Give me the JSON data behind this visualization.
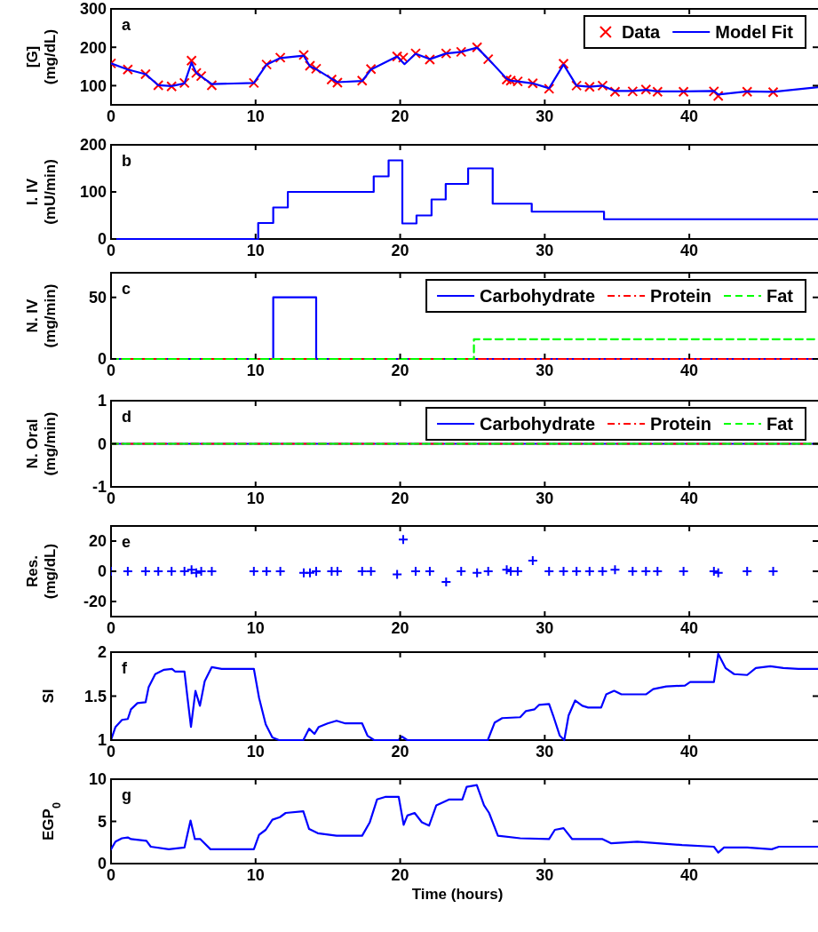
{
  "chart_data": [
    {
      "type": "line",
      "ylabel": "[G]\n(mg/dL)",
      "annotations": [
        "a"
      ],
      "xlim": [
        0,
        48.9
      ],
      "xticks": [
        0,
        10,
        20,
        30,
        40
      ],
      "ylim": [
        50,
        300
      ],
      "yticks": [
        100,
        200,
        300
      ],
      "legend": "top right",
      "grid": false,
      "series": [
        {
          "name": "Data",
          "type": "scatter",
          "marker": "cross",
          "color": "#ff0000",
          "x": [
            0,
            1.16,
            2.39,
            3.27,
            4.19,
            5.08,
            5.57,
            5.9,
            6.24,
            6.97,
            9.88,
            10.76,
            11.71,
            13.33,
            13.76,
            14.19,
            15.26,
            15.66,
            17.37,
            17.98,
            19.79,
            20.21,
            21.07,
            22.05,
            23.18,
            24.22,
            25.32,
            26.09,
            27.37,
            27.65,
            28.13,
            29.17,
            30.3,
            31.3,
            32.2,
            33.1,
            34.0,
            34.86,
            36.08,
            37.0,
            37.8,
            39.6,
            41.7,
            42.0,
            44.0,
            45.8
          ],
          "values": [
            158,
            142,
            130,
            101,
            98,
            107,
            165,
            133,
            125,
            101,
            107,
            155,
            173,
            180,
            152,
            144,
            116,
            108,
            113,
            143,
            176,
            173,
            184,
            168,
            184,
            188,
            200,
            169,
            116,
            113,
            111,
            106,
            92,
            157,
            100,
            97,
            100,
            84,
            85,
            90,
            84,
            84,
            85,
            73,
            84,
            83
          ]
        },
        {
          "name": "Model Fit",
          "line_style": "solid",
          "color": "#0000ff",
          "x": [
            0,
            1.16,
            2.39,
            3.27,
            4.19,
            5.08,
            5.57,
            5.9,
            6.24,
            6.97,
            9.88,
            10.76,
            11.71,
            13.33,
            13.76,
            14.19,
            15.26,
            15.66,
            17.37,
            17.98,
            19.79,
            20.3,
            21.07,
            22.05,
            23.18,
            24.22,
            25.32,
            26.09,
            27.37,
            27.65,
            28.13,
            29.17,
            30.3,
            31.3,
            32.2,
            33.1,
            34.0,
            34.86,
            36.08,
            37.0,
            37.8,
            39.6,
            41.7,
            42.0,
            44.0,
            45.8,
            48.9
          ],
          "values": [
            158,
            142,
            130,
            101,
            99,
            106,
            160,
            133,
            124,
            104,
            107,
            155,
            172,
            178,
            150,
            143,
            118,
            109,
            112,
            142,
            176,
            156,
            183,
            169,
            184,
            188,
            199,
            170,
            118,
            113,
            111,
            106,
            93,
            155,
            100,
            97,
            100,
            86,
            86,
            89,
            85,
            85,
            86,
            77,
            85,
            84,
            96
          ]
        }
      ]
    },
    {
      "type": "step",
      "ylabel": "I. IV\n(mU/min)",
      "annotations": [
        "b"
      ],
      "xlim": [
        0,
        48.9
      ],
      "xticks": [
        0,
        10,
        20,
        30,
        40
      ],
      "ylim": [
        0,
        200
      ],
      "yticks": [
        0,
        100,
        200
      ],
      "grid": false,
      "series": [
        {
          "color": "#0000ff",
          "x": [
            0,
            10.18,
            11.22,
            12.23,
            18.17,
            19.2,
            20.15,
            21.13,
            22.17,
            23.15,
            24.7,
            26.4,
            29.1,
            34.1,
            48.9
          ],
          "values": [
            0,
            34,
            67,
            100,
            133,
            167,
            33,
            50,
            84,
            117,
            150,
            75,
            58,
            42,
            42
          ]
        }
      ]
    },
    {
      "type": "step",
      "ylabel": "N. IV\n(mg/min)",
      "annotations": [
        "c"
      ],
      "xlim": [
        0,
        48.9
      ],
      "xticks": [
        0,
        10,
        20,
        30,
        40
      ],
      "ylim": [
        0,
        70
      ],
      "yticks": [
        0,
        50
      ],
      "legend": "top right",
      "grid": false,
      "series": [
        {
          "name": "Carbohydrate",
          "color": "#0000ff",
          "line_style": "solid",
          "x": [
            0,
            11.22,
            14.19,
            48.9
          ],
          "values": [
            0,
            50,
            0,
            0
          ]
        },
        {
          "name": "Protein",
          "color": "#ff0000",
          "line_style": "dashdot",
          "x": [
            0,
            48.9
          ],
          "values": [
            0,
            0
          ]
        },
        {
          "name": "Fat",
          "color": "#00ff00",
          "line_style": "dashed",
          "x": [
            0,
            25.1,
            48.9
          ],
          "values": [
            0,
            16,
            16
          ]
        }
      ]
    },
    {
      "type": "line",
      "ylabel": "N. Oral\n(mg/min)",
      "annotations": [
        "d"
      ],
      "xlim": [
        0,
        48.9
      ],
      "xticks": [
        0,
        10,
        20,
        30,
        40
      ],
      "ylim": [
        -1,
        1
      ],
      "yticks": [
        -1,
        0,
        1
      ],
      "legend": "top right",
      "grid": false,
      "series": [
        {
          "name": "Carbohydrate",
          "color": "#0000ff",
          "line_style": "solid",
          "x": [
            0,
            48.9
          ],
          "values": [
            0,
            0
          ]
        },
        {
          "name": "Protein",
          "color": "#ff0000",
          "line_style": "dashdot",
          "x": [
            0,
            48.9
          ],
          "values": [
            0,
            0
          ]
        },
        {
          "name": "Fat",
          "color": "#00ff00",
          "line_style": "dashed",
          "x": [
            0,
            48.9
          ],
          "values": [
            0,
            0
          ]
        }
      ]
    },
    {
      "type": "scatter",
      "ylabel": "Res.\n(mg/dL)",
      "annotations": [
        "e"
      ],
      "xlim": [
        0,
        48.9
      ],
      "xticks": [
        0,
        10,
        20,
        30,
        40
      ],
      "ylim": [
        -30,
        30
      ],
      "yticks": [
        -20,
        0,
        20
      ],
      "marker": "plus",
      "grid": false,
      "series": [
        {
          "color": "#0000ff",
          "x": [
            0,
            1.16,
            2.39,
            3.27,
            4.19,
            5.08,
            5.57,
            5.9,
            6.24,
            6.97,
            9.88,
            10.76,
            11.71,
            13.33,
            13.76,
            14.19,
            15.26,
            15.66,
            17.37,
            17.98,
            19.79,
            20.21,
            21.07,
            22.05,
            23.18,
            24.22,
            25.32,
            26.09,
            27.37,
            27.65,
            28.13,
            29.17,
            30.3,
            31.3,
            32.2,
            33.1,
            34.0,
            34.86,
            36.08,
            37.0,
            37.8,
            39.6,
            41.7,
            42.0,
            44.0,
            45.8
          ],
          "values": [
            0,
            0,
            0,
            0,
            0,
            0,
            1,
            -1,
            0,
            0,
            0,
            0,
            0,
            -1,
            -1,
            0,
            0,
            0,
            0,
            0,
            -2,
            21,
            0,
            0,
            -7,
            0,
            -1,
            0,
            1,
            0,
            0,
            7,
            0,
            0,
            0,
            0,
            0,
            1,
            0,
            0,
            0,
            0,
            0,
            -1,
            0,
            0
          ]
        }
      ]
    },
    {
      "type": "line",
      "ylabel": "SI",
      "annotations": [
        "f"
      ],
      "xlim": [
        0,
        48.9
      ],
      "xticks": [
        0,
        10,
        20,
        30,
        40
      ],
      "ylim": [
        1,
        2
      ],
      "yticks": [
        1,
        1.5,
        2
      ],
      "grid": false,
      "series": [
        {
          "color": "#0000ff",
          "x": [
            0,
            0.31,
            0.76,
            1.16,
            1.38,
            1.83,
            2.39,
            2.6,
            3.06,
            3.67,
            4.22,
            4.43,
            5.08,
            5.29,
            5.53,
            5.84,
            6.15,
            6.48,
            6.97,
            7.65,
            9.88,
            10.24,
            10.7,
            11.16,
            11.62,
            13.3,
            13.7,
            14.07,
            14.37,
            14.98,
            15.6,
            16.21,
            17.37,
            17.74,
            18.2,
            19.88,
            20.12,
            20.49,
            26.06,
            26.54,
            27.06,
            28.3,
            28.7,
            29.3,
            29.6,
            30.3,
            30.58,
            31.04,
            31.35,
            31.65,
            32.1,
            32.6,
            33.0,
            33.9,
            34.25,
            34.8,
            35.3,
            37.0,
            37.5,
            38.4,
            39.7,
            40.06,
            41.7,
            42.0,
            42.5,
            43.1,
            44.0,
            44.6,
            45.6,
            46.5,
            47.55,
            48.9
          ],
          "values": [
            1.0,
            1.15,
            1.23,
            1.24,
            1.35,
            1.42,
            1.43,
            1.6,
            1.75,
            1.8,
            1.81,
            1.78,
            1.78,
            1.48,
            1.15,
            1.56,
            1.39,
            1.67,
            1.83,
            1.81,
            1.81,
            1.48,
            1.18,
            1.03,
            1.0,
            1.0,
            1.13,
            1.07,
            1.15,
            1.19,
            1.22,
            1.19,
            1.19,
            1.05,
            1.0,
            1.0,
            1.04,
            1.0,
            1.0,
            1.2,
            1.25,
            1.26,
            1.33,
            1.35,
            1.4,
            1.41,
            1.28,
            1.05,
            1.0,
            1.28,
            1.45,
            1.39,
            1.37,
            1.37,
            1.52,
            1.56,
            1.52,
            1.52,
            1.58,
            1.61,
            1.62,
            1.66,
            1.66,
            1.98,
            1.82,
            1.75,
            1.74,
            1.82,
            1.84,
            1.82,
            1.81,
            1.81
          ]
        }
      ]
    },
    {
      "type": "line",
      "ylabel": "EGP$_{0}$",
      "xlabel": "Time (hours)",
      "annotations": [
        "g"
      ],
      "xlim": [
        0,
        48.9
      ],
      "xticks": [
        0,
        10,
        20,
        30,
        40
      ],
      "ylim": [
        0,
        10
      ],
      "yticks": [
        0,
        5,
        10
      ],
      "grid": false,
      "series": [
        {
          "color": "#0000ff",
          "x": [
            0,
            0.31,
            0.76,
            1.16,
            1.38,
            2.45,
            2.75,
            4.0,
            5.08,
            5.5,
            5.8,
            6.18,
            6.88,
            9.88,
            10.24,
            10.7,
            11.16,
            11.68,
            12.08,
            13.3,
            13.7,
            14.3,
            15.6,
            16.2,
            17.37,
            17.9,
            18.4,
            18.96,
            19.9,
            20.24,
            20.5,
            21.0,
            21.5,
            22.0,
            22.5,
            23.4,
            24.3,
            24.6,
            25.3,
            25.8,
            26.15,
            26.76,
            28.3,
            30.3,
            30.7,
            31.3,
            31.9,
            34.0,
            34.6,
            36.4,
            39.5,
            41.7,
            42.0,
            42.4,
            44.0,
            45.7,
            46.2,
            47.55,
            48.9
          ],
          "values": [
            1.7,
            2.6,
            3.0,
            3.1,
            2.9,
            2.7,
            2.0,
            1.7,
            1.9,
            5.1,
            2.9,
            2.9,
            1.7,
            1.7,
            3.4,
            4.0,
            5.2,
            5.5,
            6.0,
            6.2,
            4.1,
            3.6,
            3.3,
            3.3,
            3.3,
            4.9,
            7.6,
            7.9,
            7.9,
            4.6,
            5.7,
            6.0,
            4.9,
            4.5,
            6.9,
            7.6,
            7.6,
            9.1,
            9.3,
            6.9,
            6.0,
            3.3,
            3.0,
            2.9,
            4.0,
            4.2,
            2.9,
            2.9,
            2.4,
            2.6,
            2.2,
            2.0,
            1.3,
            1.9,
            1.9,
            1.7,
            2.0,
            2.0,
            2.0
          ]
        }
      ]
    }
  ]
}
